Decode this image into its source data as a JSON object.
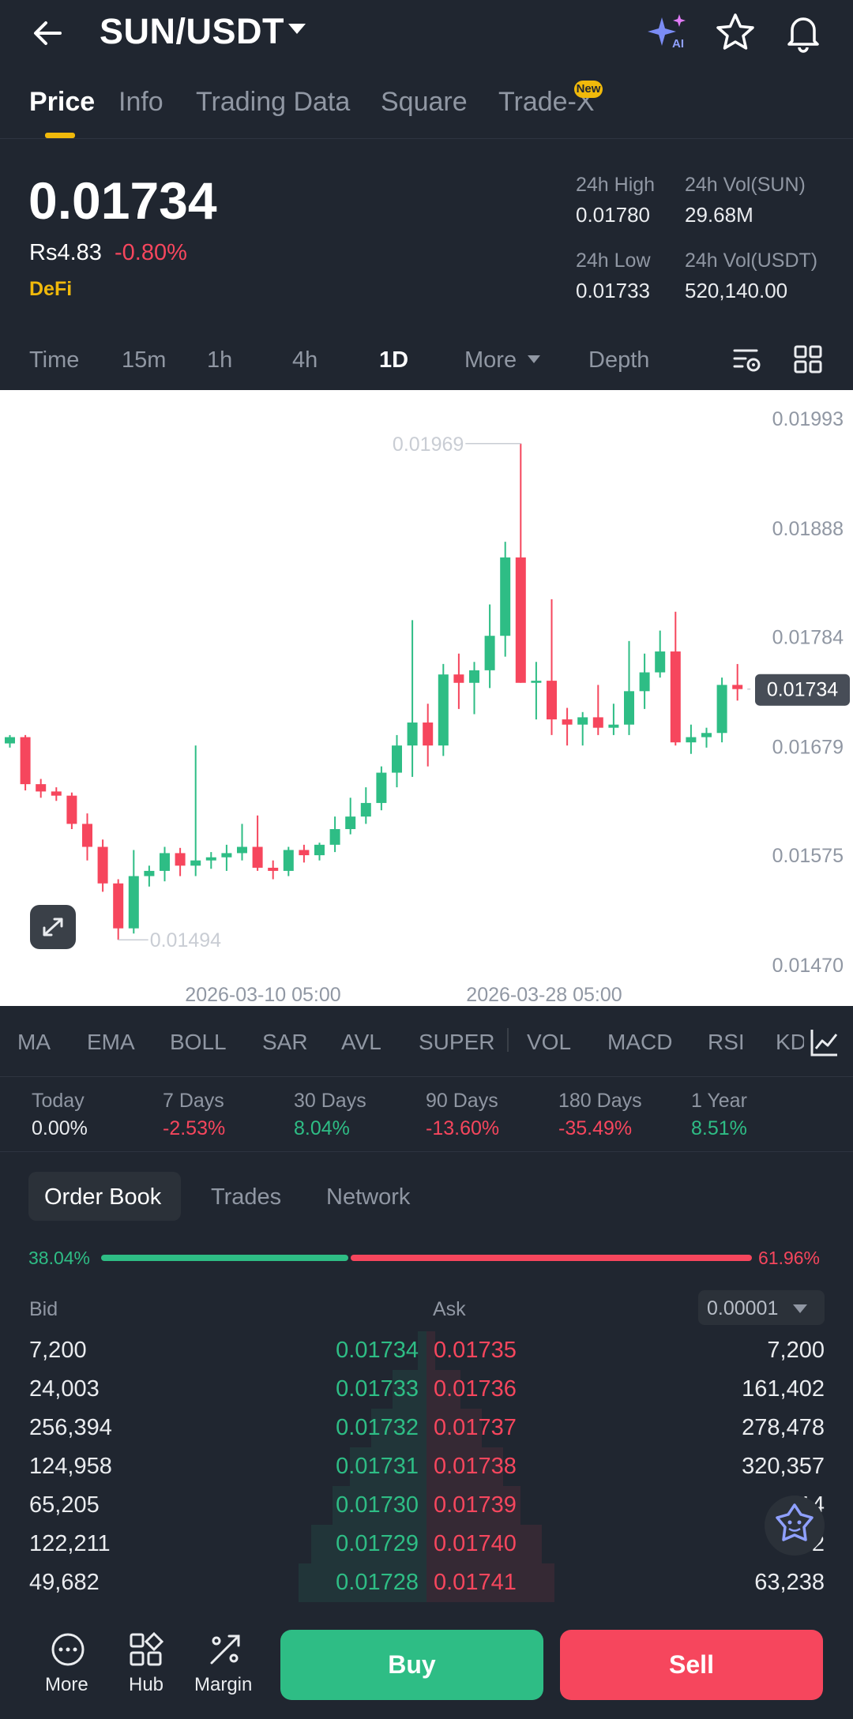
{
  "header": {
    "pair": "SUN/USDT",
    "icons": [
      "back-arrow-icon",
      "ai-sparkle-icon",
      "star-icon",
      "bell-icon"
    ]
  },
  "tabs": [
    {
      "label": "Price",
      "active": true
    },
    {
      "label": "Info"
    },
    {
      "label": "Trading Data"
    },
    {
      "label": "Square"
    },
    {
      "label": "Trade-X",
      "badge": "New"
    }
  ],
  "price": {
    "last": "0.01734",
    "fiat": "Rs4.83",
    "change": "-0.80%",
    "tag": "DeFi",
    "high_label": "24h High",
    "high": "0.01780",
    "low_label": "24h Low",
    "low": "0.01733",
    "vol_base_label": "24h Vol(SUN)",
    "vol_base": "29.68M",
    "vol_quote_label": "24h Vol(USDT)",
    "vol_quote": "520,140.00"
  },
  "intervals": [
    {
      "label": "Time"
    },
    {
      "label": "15m"
    },
    {
      "label": "1h"
    },
    {
      "label": "4h"
    },
    {
      "label": "1D",
      "active": true
    },
    {
      "label": "More"
    },
    {
      "label": "Depth"
    }
  ],
  "chart_data": {
    "type": "candlestick",
    "y_ticks": [
      "0.01993",
      "0.01888",
      "0.01784",
      "0.01679",
      "0.01575",
      "0.01470"
    ],
    "ylim": [
      0.0147,
      0.01993
    ],
    "x_ticks": [
      "2026-03-10 05:00",
      "2026-03-28 05:00"
    ],
    "current_price_label": "0.01734",
    "high_annotation": "0.01969",
    "low_annotation": "0.01494",
    "up_color": "#2EBD85",
    "down_color": "#F6465D",
    "candles": [
      [
        0.01682,
        0.0169,
        0.01678,
        0.01688
      ],
      [
        0.01688,
        0.0169,
        0.01637,
        0.01643
      ],
      [
        0.01643,
        0.01648,
        0.0163,
        0.01636
      ],
      [
        0.01636,
        0.0164,
        0.01627,
        0.01632
      ],
      [
        0.01632,
        0.01635,
        0.016,
        0.01605
      ],
      [
        0.01605,
        0.01615,
        0.0157,
        0.01583
      ],
      [
        0.01583,
        0.0159,
        0.0154,
        0.01548
      ],
      [
        0.01548,
        0.01552,
        0.01494,
        0.01505
      ],
      [
        0.01505,
        0.0158,
        0.015,
        0.01555
      ],
      [
        0.01555,
        0.01565,
        0.01545,
        0.0156
      ],
      [
        0.0156,
        0.01583,
        0.0155,
        0.01577
      ],
      [
        0.01577,
        0.01582,
        0.01555,
        0.01565
      ],
      [
        0.01565,
        0.0168,
        0.01555,
        0.0157
      ],
      [
        0.0157,
        0.01578,
        0.01562,
        0.01573
      ],
      [
        0.01573,
        0.01585,
        0.0156,
        0.01577
      ],
      [
        0.01577,
        0.01605,
        0.0157,
        0.01583
      ],
      [
        0.01583,
        0.01613,
        0.0156,
        0.01563
      ],
      [
        0.01563,
        0.0157,
        0.01552,
        0.0156
      ],
      [
        0.0156,
        0.01583,
        0.01555,
        0.0158
      ],
      [
        0.0158,
        0.01585,
        0.01568,
        0.01575
      ],
      [
        0.01575,
        0.01587,
        0.0157,
        0.01585
      ],
      [
        0.01585,
        0.01612,
        0.01578,
        0.016
      ],
      [
        0.016,
        0.0163,
        0.01595,
        0.01612
      ],
      [
        0.01612,
        0.0164,
        0.01605,
        0.01625
      ],
      [
        0.01625,
        0.0166,
        0.01618,
        0.01654
      ],
      [
        0.01654,
        0.0169,
        0.0164,
        0.0168
      ],
      [
        0.0168,
        0.018,
        0.0165,
        0.01702
      ],
      [
        0.01702,
        0.0172,
        0.0166,
        0.0168
      ],
      [
        0.0168,
        0.01758,
        0.0167,
        0.01748
      ],
      [
        0.01748,
        0.01768,
        0.01715,
        0.0174
      ],
      [
        0.0174,
        0.0176,
        0.0171,
        0.01752
      ],
      [
        0.01752,
        0.01815,
        0.01735,
        0.01785
      ],
      [
        0.01785,
        0.01875,
        0.01765,
        0.0186
      ],
      [
        0.0186,
        0.01969,
        0.0174,
        0.0174
      ],
      [
        0.0174,
        0.0176,
        0.01705,
        0.01742
      ],
      [
        0.01742,
        0.0182,
        0.0169,
        0.01705
      ],
      [
        0.01705,
        0.01716,
        0.0168,
        0.017
      ],
      [
        0.017,
        0.01712,
        0.0168,
        0.01707
      ],
      [
        0.01707,
        0.01738,
        0.0169,
        0.01697
      ],
      [
        0.01697,
        0.0172,
        0.0169,
        0.017
      ],
      [
        0.017,
        0.0178,
        0.0169,
        0.01732
      ],
      [
        0.01732,
        0.01768,
        0.01715,
        0.0175
      ],
      [
        0.0175,
        0.0179,
        0.01745,
        0.0177
      ],
      [
        0.0177,
        0.01808,
        0.0168,
        0.01683
      ],
      [
        0.01683,
        0.017,
        0.01672,
        0.01688
      ],
      [
        0.01688,
        0.01697,
        0.01678,
        0.01692
      ],
      [
        0.01692,
        0.01745,
        0.01683,
        0.01738
      ],
      [
        0.01738,
        0.01758,
        0.01723,
        0.01734
      ]
    ]
  },
  "indicators": [
    "MA",
    "EMA",
    "BOLL",
    "SAR",
    "AVL",
    "SUPER",
    "VOL",
    "MACD",
    "RSI",
    "KD"
  ],
  "performance": [
    {
      "label": "Today",
      "value": "0.00%",
      "color": "#EAECEF"
    },
    {
      "label": "7 Days",
      "value": "-2.53%",
      "color": "#F6465D"
    },
    {
      "label": "30 Days",
      "value": "8.04%",
      "color": "#2EBD85"
    },
    {
      "label": "90 Days",
      "value": "-13.60%",
      "color": "#F6465D"
    },
    {
      "label": "180 Days",
      "value": "-35.49%",
      "color": "#F6465D"
    },
    {
      "label": "1 Year",
      "value": "8.51%",
      "color": "#2EBD85"
    }
  ],
  "book": {
    "tabs": [
      "Order Book",
      "Trades",
      "Network"
    ],
    "bid_ratio": "38.04%",
    "ask_ratio": "61.96%",
    "bid_fraction": 0.3804,
    "bid_header": "Bid",
    "ask_header": "Ask",
    "precision": "0.00001",
    "rows": [
      {
        "bid_qty": "7,200",
        "bid_price": "0.01734",
        "ask_price": "0.01735",
        "ask_qty": "7,200"
      },
      {
        "bid_qty": "24,003",
        "bid_price": "0.01733",
        "ask_price": "0.01736",
        "ask_qty": "161,402"
      },
      {
        "bid_qty": "256,394",
        "bid_price": "0.01732",
        "ask_price": "0.01737",
        "ask_qty": "278,478"
      },
      {
        "bid_qty": "124,958",
        "bid_price": "0.01731",
        "ask_price": "0.01738",
        "ask_qty": "320,357"
      },
      {
        "bid_qty": "65,205",
        "bid_price": "0.01730",
        "ask_price": "0.01739",
        "ask_qty": "14"
      },
      {
        "bid_qty": "122,211",
        "bid_price": "0.01729",
        "ask_price": "0.01740",
        "ask_qty": "2"
      },
      {
        "bid_qty": "49,682",
        "bid_price": "0.01728",
        "ask_price": "0.01741",
        "ask_qty": "63,238"
      }
    ],
    "depth_bid": [
      0.02,
      0.08,
      0.13,
      0.18,
      0.22,
      0.27,
      0.3
    ],
    "depth_ask": [
      0.02,
      0.08,
      0.13,
      0.18,
      0.22,
      0.27,
      0.3
    ]
  },
  "bottom": {
    "more": "More",
    "hub": "Hub",
    "margin": "Margin",
    "buy": "Buy",
    "sell": "Sell"
  }
}
